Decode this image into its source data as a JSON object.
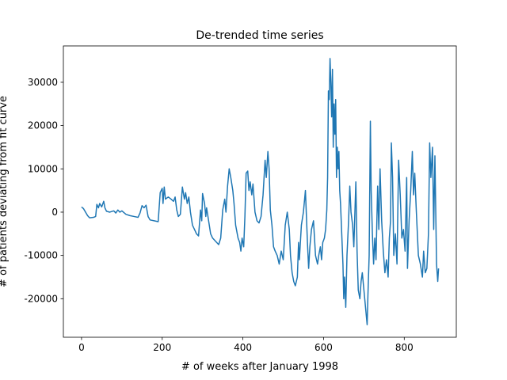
{
  "chart_data": {
    "type": "line",
    "title": "De-trended time series",
    "x_label": "# of weeks after January 1998",
    "y_label": "# of patients deviating from fit curve",
    "xlim": [
      -45,
      929
    ],
    "ylim": [
      -28900,
      38400
    ],
    "xticks": [
      0,
      200,
      400,
      600,
      800
    ],
    "yticks": [
      -20000,
      -10000,
      0,
      10000,
      20000,
      30000
    ],
    "grid": false,
    "series": [
      {
        "color": "#1f77b4",
        "x": [
          0,
          5,
          10,
          15,
          20,
          30,
          35,
          38,
          42,
          45,
          50,
          55,
          58,
          62,
          70,
          80,
          85,
          90,
          95,
          100,
          110,
          120,
          130,
          140,
          145,
          150,
          155,
          160,
          165,
          170,
          180,
          190,
          195,
          200,
          202,
          205,
          208,
          215,
          222,
          228,
          232,
          236,
          240,
          245,
          250,
          255,
          258,
          262,
          266,
          270,
          275,
          280,
          285,
          290,
          295,
          298,
          300,
          305,
          308,
          310,
          315,
          320,
          325,
          330,
          335,
          340,
          345,
          350,
          355,
          358,
          362,
          366,
          370,
          375,
          378,
          382,
          388,
          392,
          395,
          398,
          402,
          405,
          408,
          412,
          415,
          418,
          422,
          425,
          430,
          435,
          440,
          445,
          450,
          455,
          458,
          462,
          465,
          468,
          472,
          476,
          480,
          485,
          490,
          495,
          500,
          505,
          510,
          515,
          518,
          522,
          526,
          530,
          535,
          538,
          540,
          545,
          550,
          555,
          560,
          563,
          566,
          570,
          575,
          580,
          585,
          588,
          592,
          595,
          598,
          602,
          605,
          608,
          610,
          612,
          614,
          616,
          618,
          620,
          622,
          624,
          626,
          628,
          630,
          632,
          634,
          636,
          638,
          640,
          642,
          645,
          648,
          650,
          652,
          655,
          658,
          662,
          665,
          668,
          672,
          675,
          680,
          683,
          686,
          690,
          693,
          696,
          700,
          705,
          708,
          710,
          713,
          716,
          718,
          721,
          724,
          727,
          730,
          734,
          737,
          740,
          744,
          748,
          752,
          756,
          760,
          763,
          766,
          768,
          771,
          774,
          778,
          782,
          786,
          790,
          794,
          798,
          802,
          806,
          808,
          812,
          816,
          820,
          823,
          826,
          830,
          835,
          840,
          845,
          848,
          852,
          856,
          860,
          863,
          866,
          870,
          873,
          876,
          880,
          883,
          885
        ],
        "values": [
          1200,
          800,
          0,
          -800,
          -1300,
          -1200,
          -1000,
          1800,
          1000,
          2000,
          1200,
          2500,
          1000,
          200,
          0,
          300,
          -200,
          500,
          0,
          300,
          -500,
          -800,
          -1000,
          -1200,
          -200,
          1500,
          1000,
          1600,
          -1000,
          -1800,
          -2000,
          -2200,
          4500,
          5500,
          2000,
          5800,
          3000,
          3500,
          3000,
          2500,
          3500,
          500,
          -1000,
          -500,
          5800,
          3000,
          4500,
          2000,
          3500,
          0,
          -3000,
          -4000,
          -5000,
          -5500,
          500,
          -2000,
          4300,
          2000,
          -1000,
          1000,
          -2000,
          -5000,
          -6000,
          -6500,
          -7000,
          -7500,
          -6000,
          500,
          3000,
          0,
          6000,
          10000,
          8000,
          5000,
          2000,
          -3000,
          -6000,
          -7000,
          -9000,
          -6000,
          -8000,
          -1000,
          9000,
          9500,
          5000,
          7000,
          4000,
          6500,
          0,
          -2000,
          -2500,
          -1000,
          4000,
          12000,
          8000,
          14000,
          10000,
          500,
          -3000,
          -8000,
          -9000,
          -10000,
          -12000,
          -9000,
          -11000,
          -3000,
          0,
          -4000,
          -10000,
          -14000,
          -16000,
          -17000,
          -15000,
          -7000,
          -11000,
          -3000,
          0,
          5000,
          -7000,
          -13000,
          -8000,
          -4000,
          -2000,
          -10000,
          -12000,
          -10000,
          -8000,
          -11000,
          -7000,
          -6000,
          -4000,
          500,
          8000,
          28000,
          26000,
          35500,
          30000,
          22000,
          33000,
          15000,
          25000,
          18000,
          26000,
          8000,
          15000,
          10000,
          14000,
          5000,
          2000,
          -5000,
          -12000,
          -20000,
          -15000,
          -22000,
          -10000,
          -2000,
          6000,
          0,
          -3000,
          -8000,
          7000,
          -9000,
          -18000,
          -20000,
          -16000,
          -14000,
          -18000,
          -23000,
          -26000,
          -19000,
          -10000,
          21000,
          5000,
          -5000,
          -12000,
          -6000,
          -11000,
          6000,
          -4000,
          10000,
          -2000,
          -9000,
          -14000,
          -11000,
          -15000,
          -6000,
          -2000,
          16000,
          8000,
          -10000,
          -5000,
          -12000,
          12000,
          4000,
          -6000,
          -4000,
          -9000,
          8000,
          -13000,
          -2000,
          5000,
          14000,
          4000,
          9000,
          0,
          -10000,
          -12000,
          -15000,
          -9000,
          -14000,
          -13000,
          -5000,
          16000,
          8000,
          15000,
          -4000,
          13000,
          -12000,
          -16000,
          -13000
        ]
      }
    ]
  }
}
